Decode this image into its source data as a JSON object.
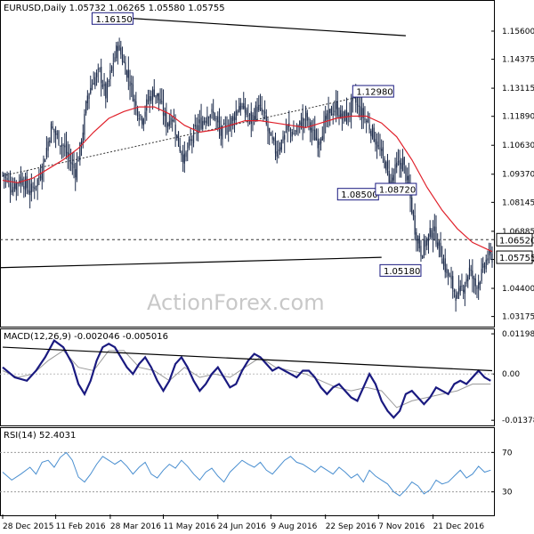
{
  "chart_data": [
    {
      "type": "candlestick",
      "panel": "price",
      "title": "EURUSD,Daily  1.05732 1.06265 1.05580 1.05755",
      "watermark": "ActionForex.com",
      "ylim": [
        1.0285,
        1.168
      ],
      "y_ticks": [
        "1.15600",
        "1.14375",
        "1.13115",
        "1.11890",
        "1.10630",
        "1.09370",
        "1.08145",
        "1.06885",
        "1.05660",
        "1.04400",
        "1.03175"
      ],
      "y_tick_values": [
        1.156,
        1.14375,
        1.13115,
        1.1189,
        1.1063,
        1.0937,
        1.08145,
        1.06885,
        1.0566,
        1.044,
        1.03175
      ],
      "price_points": [
        [
          0,
          1.094
        ],
        [
          6,
          1.088
        ],
        [
          12,
          1.092
        ],
        [
          18,
          1.086
        ],
        [
          24,
          1.092
        ],
        [
          28,
          1.102
        ],
        [
          32,
          1.114
        ],
        [
          36,
          1.11
        ],
        [
          40,
          1.106
        ],
        [
          44,
          1.1
        ],
        [
          48,
          1.095
        ],
        [
          52,
          1.108
        ],
        [
          56,
          1.128
        ],
        [
          60,
          1.135
        ],
        [
          64,
          1.138
        ],
        [
          68,
          1.128
        ],
        [
          72,
          1.14
        ],
        [
          76,
          1.15
        ],
        [
          80,
          1.142
        ],
        [
          84,
          1.134
        ],
        [
          88,
          1.123
        ],
        [
          92,
          1.118
        ],
        [
          96,
          1.126
        ],
        [
          100,
          1.13
        ],
        [
          104,
          1.125
        ],
        [
          108,
          1.116
        ],
        [
          112,
          1.119
        ],
        [
          116,
          1.107
        ],
        [
          120,
          1.1
        ],
        [
          124,
          1.108
        ],
        [
          128,
          1.114
        ],
        [
          132,
          1.117
        ],
        [
          136,
          1.121
        ],
        [
          140,
          1.119
        ],
        [
          144,
          1.111
        ],
        [
          148,
          1.114
        ],
        [
          152,
          1.118
        ],
        [
          156,
          1.124
        ],
        [
          160,
          1.121
        ],
        [
          164,
          1.117
        ],
        [
          168,
          1.123
        ],
        [
          172,
          1.12
        ],
        [
          176,
          1.11
        ],
        [
          180,
          1.104
        ],
        [
          184,
          1.108
        ],
        [
          188,
          1.114
        ],
        [
          192,
          1.111
        ],
        [
          196,
          1.115
        ],
        [
          200,
          1.119
        ],
        [
          204,
          1.112
        ],
        [
          208,
          1.108
        ],
        [
          212,
          1.115
        ],
        [
          216,
          1.12
        ],
        [
          220,
          1.123
        ],
        [
          224,
          1.118
        ],
        [
          228,
          1.12
        ],
        [
          232,
          1.126
        ],
        [
          236,
          1.121
        ],
        [
          240,
          1.117
        ],
        [
          244,
          1.112
        ],
        [
          248,
          1.105
        ],
        [
          252,
          1.099
        ],
        [
          256,
          1.09
        ],
        [
          260,
          1.097
        ],
        [
          264,
          1.099
        ],
        [
          268,
          1.087
        ],
        [
          272,
          1.07
        ],
        [
          276,
          1.06
        ],
        [
          280,
          1.065
        ],
        [
          284,
          1.07
        ],
        [
          288,
          1.062
        ],
        [
          292,
          1.053
        ],
        [
          296,
          1.046
        ],
        [
          300,
          1.04
        ],
        [
          304,
          1.045
        ],
        [
          308,
          1.052
        ],
        [
          312,
          1.045
        ],
        [
          316,
          1.05
        ],
        [
          320,
          1.058
        ],
        [
          323,
          1.0575
        ]
      ],
      "ma_points": [
        [
          0,
          1.091
        ],
        [
          10,
          1.09
        ],
        [
          20,
          1.092
        ],
        [
          30,
          1.096
        ],
        [
          40,
          1.1
        ],
        [
          50,
          1.105
        ],
        [
          60,
          1.112
        ],
        [
          70,
          1.118
        ],
        [
          80,
          1.121
        ],
        [
          90,
          1.123
        ],
        [
          100,
          1.123
        ],
        [
          110,
          1.12
        ],
        [
          120,
          1.115
        ],
        [
          130,
          1.112
        ],
        [
          140,
          1.113
        ],
        [
          150,
          1.115
        ],
        [
          160,
          1.117
        ],
        [
          170,
          1.117
        ],
        [
          180,
          1.116
        ],
        [
          190,
          1.115
        ],
        [
          200,
          1.114
        ],
        [
          210,
          1.116
        ],
        [
          220,
          1.118
        ],
        [
          230,
          1.119
        ],
        [
          240,
          1.119
        ],
        [
          250,
          1.116
        ],
        [
          260,
          1.11
        ],
        [
          270,
          1.1
        ],
        [
          280,
          1.088
        ],
        [
          290,
          1.078
        ],
        [
          300,
          1.07
        ],
        [
          310,
          1.064
        ],
        [
          323,
          1.06
        ]
      ],
      "annotations": [
        {
          "label": "1.16150",
          "bar": 86,
          "price": 1.1615
        },
        {
          "label": "1.12980",
          "bar": 258,
          "price": 1.1298
        },
        {
          "label": "1.08500",
          "bar": 248,
          "price": 1.085
        },
        {
          "label": "1.08720",
          "bar": 273,
          "price": 1.0872
        },
        {
          "label": "1.05180",
          "bar": 276,
          "price": 1.0518
        }
      ],
      "last_price_boxes": [
        "1.06520",
        "1.05755"
      ],
      "last_price_values": [
        1.0652,
        1.05755
      ],
      "dashed_level": 1.0652,
      "solid_level": 1.0575
    },
    {
      "type": "line",
      "panel": "macd",
      "title": "MACD(12,26,9) -0.002046 -0.005016",
      "ylim": [
        -0.0148,
        0.0128
      ],
      "y_ticks": [
        "0.011982",
        "0.00",
        "-0.013788"
      ],
      "y_tick_values": [
        0.011982,
        0.0,
        -0.013788
      ],
      "macd_points": [
        [
          0,
          0.002
        ],
        [
          8,
          -0.001
        ],
        [
          16,
          -0.002
        ],
        [
          22,
          0.001
        ],
        [
          28,
          0.005
        ],
        [
          34,
          0.01
        ],
        [
          40,
          0.008
        ],
        [
          46,
          0.003
        ],
        [
          50,
          -0.003
        ],
        [
          54,
          -0.006
        ],
        [
          58,
          -0.002
        ],
        [
          62,
          0.004
        ],
        [
          66,
          0.008
        ],
        [
          70,
          0.009
        ],
        [
          74,
          0.008
        ],
        [
          78,
          0.005
        ],
        [
          82,
          0.002
        ],
        [
          86,
          0.0
        ],
        [
          90,
          0.003
        ],
        [
          94,
          0.005
        ],
        [
          98,
          0.002
        ],
        [
          102,
          -0.002
        ],
        [
          106,
          -0.005
        ],
        [
          110,
          -0.002
        ],
        [
          114,
          0.003
        ],
        [
          118,
          0.005
        ],
        [
          122,
          0.002
        ],
        [
          126,
          -0.002
        ],
        [
          130,
          -0.005
        ],
        [
          134,
          -0.003
        ],
        [
          138,
          0.0
        ],
        [
          142,
          0.002
        ],
        [
          146,
          -0.001
        ],
        [
          150,
          -0.004
        ],
        [
          154,
          -0.003
        ],
        [
          158,
          0.001
        ],
        [
          162,
          0.004
        ],
        [
          166,
          0.006
        ],
        [
          170,
          0.005
        ],
        [
          174,
          0.003
        ],
        [
          178,
          0.001
        ],
        [
          182,
          0.002
        ],
        [
          186,
          0.001
        ],
        [
          190,
          0.0
        ],
        [
          194,
          -0.001
        ],
        [
          198,
          0.001
        ],
        [
          202,
          0.001
        ],
        [
          206,
          -0.001
        ],
        [
          210,
          -0.004
        ],
        [
          214,
          -0.006
        ],
        [
          218,
          -0.004
        ],
        [
          222,
          -0.003
        ],
        [
          226,
          -0.005
        ],
        [
          230,
          -0.007
        ],
        [
          234,
          -0.008
        ],
        [
          238,
          -0.004
        ],
        [
          242,
          0.0
        ],
        [
          246,
          -0.003
        ],
        [
          250,
          -0.008
        ],
        [
          254,
          -0.011
        ],
        [
          258,
          -0.013
        ],
        [
          262,
          -0.011
        ],
        [
          266,
          -0.006
        ],
        [
          270,
          -0.005
        ],
        [
          274,
          -0.007
        ],
        [
          278,
          -0.009
        ],
        [
          282,
          -0.007
        ],
        [
          286,
          -0.004
        ],
        [
          290,
          -0.005
        ],
        [
          294,
          -0.006
        ],
        [
          298,
          -0.003
        ],
        [
          302,
          -0.002
        ],
        [
          306,
          -0.003
        ],
        [
          310,
          -0.001
        ],
        [
          314,
          0.001
        ],
        [
          318,
          -0.001
        ],
        [
          322,
          -0.002
        ]
      ],
      "signal_points": [
        [
          0,
          0.001
        ],
        [
          10,
          -0.001
        ],
        [
          20,
          0.0
        ],
        [
          30,
          0.004
        ],
        [
          40,
          0.007
        ],
        [
          50,
          0.002
        ],
        [
          60,
          0.001
        ],
        [
          70,
          0.007
        ],
        [
          80,
          0.007
        ],
        [
          90,
          0.002
        ],
        [
          100,
          0.001
        ],
        [
          110,
          -0.002
        ],
        [
          120,
          0.002
        ],
        [
          130,
          -0.001
        ],
        [
          140,
          0.0
        ],
        [
          150,
          -0.001
        ],
        [
          160,
          0.002
        ],
        [
          170,
          0.005
        ],
        [
          180,
          0.002
        ],
        [
          190,
          0.001
        ],
        [
          200,
          0.0
        ],
        [
          210,
          -0.002
        ],
        [
          220,
          -0.004
        ],
        [
          230,
          -0.005
        ],
        [
          240,
          -0.004
        ],
        [
          250,
          -0.005
        ],
        [
          260,
          -0.01
        ],
        [
          270,
          -0.008
        ],
        [
          280,
          -0.007
        ],
        [
          290,
          -0.006
        ],
        [
          300,
          -0.005
        ],
        [
          310,
          -0.003
        ],
        [
          322,
          -0.003
        ]
      ],
      "trendline_start": [
        0,
        0.008
      ],
      "trendline_end": [
        323,
        0.001
      ]
    },
    {
      "type": "line",
      "panel": "rsi",
      "title": "RSI(14) 52.4031",
      "ylim": [
        8,
        92
      ],
      "y_ticks": [
        "70",
        "30"
      ],
      "y_tick_values": [
        70,
        30
      ],
      "rsi_points": [
        [
          0,
          50
        ],
        [
          6,
          42
        ],
        [
          12,
          48
        ],
        [
          18,
          55
        ],
        [
          22,
          48
        ],
        [
          26,
          60
        ],
        [
          30,
          62
        ],
        [
          34,
          55
        ],
        [
          38,
          65
        ],
        [
          42,
          70
        ],
        [
          46,
          62
        ],
        [
          50,
          45
        ],
        [
          54,
          40
        ],
        [
          58,
          48
        ],
        [
          62,
          58
        ],
        [
          66,
          66
        ],
        [
          70,
          62
        ],
        [
          74,
          58
        ],
        [
          78,
          62
        ],
        [
          82,
          56
        ],
        [
          86,
          48
        ],
        [
          90,
          55
        ],
        [
          94,
          60
        ],
        [
          98,
          48
        ],
        [
          102,
          44
        ],
        [
          106,
          52
        ],
        [
          110,
          58
        ],
        [
          114,
          54
        ],
        [
          118,
          62
        ],
        [
          122,
          56
        ],
        [
          126,
          48
        ],
        [
          130,
          42
        ],
        [
          134,
          50
        ],
        [
          138,
          54
        ],
        [
          142,
          46
        ],
        [
          146,
          40
        ],
        [
          150,
          50
        ],
        [
          154,
          56
        ],
        [
          158,
          62
        ],
        [
          162,
          58
        ],
        [
          166,
          55
        ],
        [
          170,
          60
        ],
        [
          174,
          52
        ],
        [
          178,
          48
        ],
        [
          182,
          55
        ],
        [
          186,
          62
        ],
        [
          190,
          66
        ],
        [
          194,
          60
        ],
        [
          198,
          58
        ],
        [
          202,
          54
        ],
        [
          206,
          50
        ],
        [
          210,
          56
        ],
        [
          214,
          52
        ],
        [
          218,
          48
        ],
        [
          222,
          55
        ],
        [
          226,
          50
        ],
        [
          230,
          44
        ],
        [
          234,
          48
        ],
        [
          238,
          40
        ],
        [
          242,
          52
        ],
        [
          246,
          46
        ],
        [
          250,
          42
        ],
        [
          254,
          38
        ],
        [
          258,
          30
        ],
        [
          262,
          26
        ],
        [
          266,
          32
        ],
        [
          270,
          40
        ],
        [
          274,
          36
        ],
        [
          278,
          28
        ],
        [
          282,
          32
        ],
        [
          286,
          42
        ],
        [
          290,
          38
        ],
        [
          294,
          40
        ],
        [
          298,
          46
        ],
        [
          302,
          52
        ],
        [
          306,
          44
        ],
        [
          310,
          48
        ],
        [
          314,
          56
        ],
        [
          318,
          50
        ],
        [
          322,
          52
        ]
      ]
    }
  ],
  "x_axis": {
    "labels": [
      "28 Dec 2015",
      "11 Feb 2016",
      "28 Mar 2016",
      "11 May 2016",
      "24 Jun 2016",
      "9 Aug 2016",
      "22 Sep 2016",
      "7 Nov 2016",
      "21 Dec 2016"
    ],
    "label_bars": [
      0,
      35,
      71,
      106,
      142,
      177,
      213,
      248,
      284
    ],
    "total_bars": 324
  },
  "colors": {
    "candle": "#1b2a4a",
    "ma": "#e0202a",
    "macd": "#1a1a80",
    "signal": "#9a9a9a",
    "rsi": "#4a8fd0",
    "grid": "#cfcfcf"
  }
}
